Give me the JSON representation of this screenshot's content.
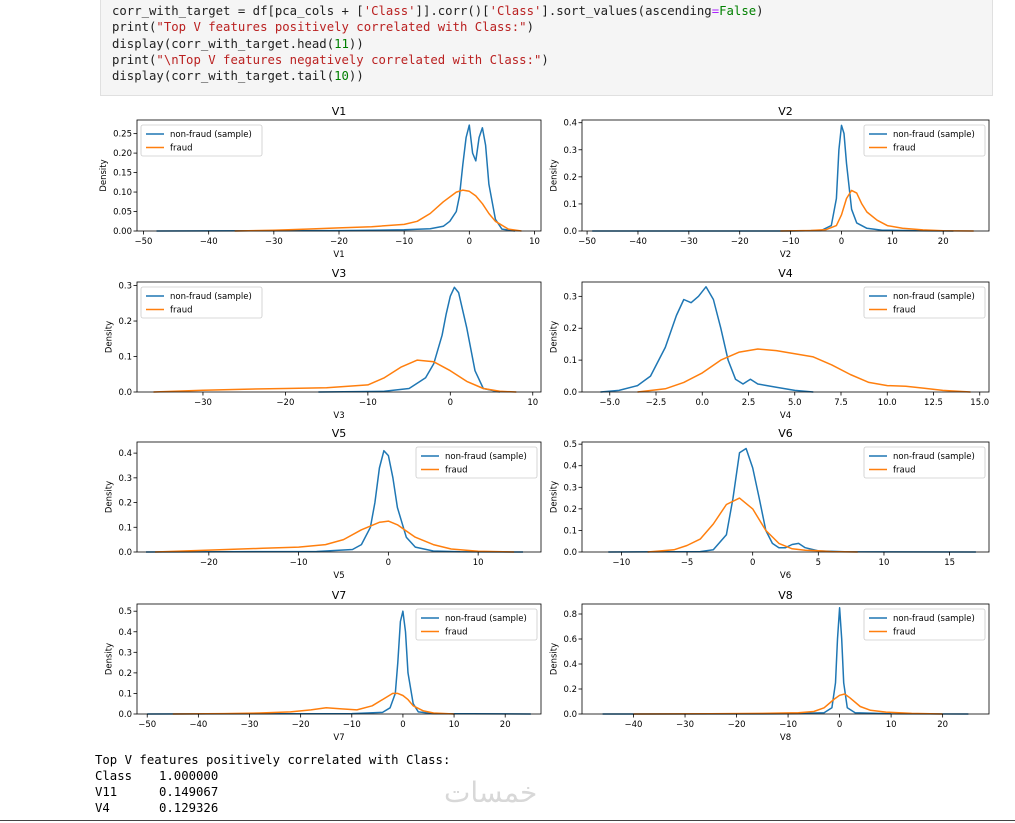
{
  "code": {
    "lines": [
      [
        [
          "t",
          "corr_with_target = df[pca_cols + ["
        ],
        [
          "s",
          "'Class'"
        ],
        [
          "t",
          "]].corr()["
        ],
        [
          "s",
          "'Class'"
        ],
        [
          "t",
          "].sort_values(ascending"
        ],
        [
          "o",
          "="
        ],
        [
          "k",
          "False"
        ],
        [
          "t",
          ")"
        ]
      ],
      [
        [
          "t",
          "print("
        ],
        [
          "s",
          "\"Top V features positively correlated with Class:\""
        ],
        [
          "t",
          ")"
        ]
      ],
      [
        [
          "t",
          "display(corr_with_target.head("
        ],
        [
          "n",
          "11"
        ],
        [
          "t",
          "))"
        ]
      ],
      [
        [
          "t",
          "print("
        ],
        [
          "s",
          "\"\\nTop V features negatively correlated with Class:\""
        ],
        [
          "t",
          ")"
        ]
      ],
      [
        [
          "t",
          "display(corr_with_target.tail("
        ],
        [
          "n",
          "10"
        ],
        [
          "t",
          "))"
        ]
      ]
    ]
  },
  "legend": {
    "nonfraud": "non-fraud (sample)",
    "fraud": "fraud"
  },
  "colors": {
    "nonfraud": "#1f77b4",
    "fraud": "#ff7f0e"
  },
  "chart_data": [
    {
      "type": "line",
      "title": "V1",
      "xlabel": "V1",
      "ylabel": "Density",
      "xlim": [
        -51,
        11
      ],
      "ylim": [
        0,
        0.285
      ],
      "xticks": [
        [
          -50,
          "−50"
        ],
        [
          -40,
          "−40"
        ],
        [
          -30,
          "−30"
        ],
        [
          -20,
          "−20"
        ],
        [
          -10,
          "−10"
        ],
        [
          0,
          "0"
        ],
        [
          10,
          "10"
        ]
      ],
      "yticks": [
        [
          0,
          "0.00"
        ],
        [
          0.05,
          "0.05"
        ],
        [
          0.1,
          "0.10"
        ],
        [
          0.15,
          "0.15"
        ],
        [
          0.2,
          "0.20"
        ],
        [
          0.25,
          "0.25"
        ]
      ],
      "legend_loc": "upper left",
      "series": [
        {
          "name": "non-fraud (sample)",
          "x": [
            -48,
            -20,
            -10,
            -6,
            -4,
            -3,
            -2,
            -1.5,
            -1,
            -0.5,
            0,
            0.5,
            1,
            1.5,
            2,
            2.5,
            3,
            4,
            5,
            7
          ],
          "y": [
            0,
            0.001,
            0.003,
            0.006,
            0.012,
            0.025,
            0.05,
            0.09,
            0.17,
            0.24,
            0.272,
            0.2,
            0.18,
            0.24,
            0.265,
            0.22,
            0.12,
            0.03,
            0.005,
            0
          ]
        },
        {
          "name": "fraud",
          "x": [
            -36,
            -30,
            -25,
            -20,
            -15,
            -10,
            -8,
            -6,
            -4,
            -2,
            -1,
            0,
            1,
            2,
            3,
            4,
            6,
            8
          ],
          "y": [
            0,
            0.002,
            0.005,
            0.008,
            0.011,
            0.017,
            0.025,
            0.045,
            0.075,
            0.1,
            0.105,
            0.102,
            0.09,
            0.07,
            0.045,
            0.025,
            0.005,
            0
          ]
        }
      ]
    },
    {
      "type": "line",
      "title": "V2",
      "xlabel": "V2",
      "ylabel": "Density",
      "xlim": [
        -51,
        29
      ],
      "ylim": [
        0,
        0.41
      ],
      "xticks": [
        [
          -50,
          "−50"
        ],
        [
          -40,
          "−40"
        ],
        [
          -30,
          "−30"
        ],
        [
          -20,
          "−20"
        ],
        [
          -10,
          "−10"
        ],
        [
          0,
          "0"
        ],
        [
          10,
          "10"
        ],
        [
          20,
          "20"
        ]
      ],
      "yticks": [
        [
          0,
          "0.0"
        ],
        [
          0.1,
          "0.1"
        ],
        [
          0.2,
          "0.2"
        ],
        [
          0.3,
          "0.3"
        ],
        [
          0.4,
          "0.4"
        ]
      ],
      "legend_loc": "upper right",
      "series": [
        {
          "name": "non-fraud (sample)",
          "x": [
            -49,
            -10,
            -4,
            -2,
            -1,
            -0.5,
            0,
            0.5,
            1,
            2,
            3,
            5,
            8,
            15,
            22
          ],
          "y": [
            0,
            0,
            0.002,
            0.02,
            0.12,
            0.3,
            0.39,
            0.36,
            0.25,
            0.08,
            0.03,
            0.01,
            0.003,
            0.001,
            0
          ]
        },
        {
          "name": "fraud",
          "x": [
            -12,
            -6,
            -3,
            -1,
            0,
            1,
            2,
            3,
            4,
            5,
            7,
            9,
            12,
            16,
            20,
            26
          ],
          "y": [
            0,
            0.002,
            0.005,
            0.02,
            0.06,
            0.12,
            0.15,
            0.14,
            0.1,
            0.07,
            0.04,
            0.02,
            0.01,
            0.004,
            0.001,
            0
          ]
        }
      ]
    },
    {
      "type": "line",
      "title": "V3",
      "xlabel": "V3",
      "ylabel": "Density",
      "xlim": [
        -38,
        11
      ],
      "ylim": [
        0,
        0.31
      ],
      "xticks": [
        [
          -30,
          "−30"
        ],
        [
          -20,
          "−20"
        ],
        [
          -10,
          "−10"
        ],
        [
          0,
          "0"
        ],
        [
          10,
          "10"
        ]
      ],
      "yticks": [
        [
          0,
          "0.0"
        ],
        [
          0.1,
          "0.1"
        ],
        [
          0.2,
          "0.2"
        ],
        [
          0.3,
          "0.3"
        ]
      ],
      "legend_loc": "upper left",
      "series": [
        {
          "name": "non-fraud (sample)",
          "x": [
            -16,
            -8,
            -5,
            -3,
            -2,
            -1,
            -0.5,
            0,
            0.5,
            1,
            2,
            3,
            4,
            6
          ],
          "y": [
            0,
            0.002,
            0.01,
            0.04,
            0.08,
            0.16,
            0.22,
            0.27,
            0.295,
            0.28,
            0.18,
            0.06,
            0.01,
            0
          ]
        },
        {
          "name": "fraud",
          "x": [
            -36,
            -30,
            -25,
            -20,
            -15,
            -10,
            -8,
            -6,
            -4,
            -2,
            0,
            2,
            4,
            6,
            8
          ],
          "y": [
            0,
            0.005,
            0.008,
            0.01,
            0.012,
            0.02,
            0.04,
            0.07,
            0.09,
            0.085,
            0.06,
            0.03,
            0.01,
            0.002,
            0
          ]
        }
      ]
    },
    {
      "type": "line",
      "title": "V4",
      "xlabel": "V4",
      "ylabel": "Density",
      "xlim": [
        -6.5,
        15.5
      ],
      "ylim": [
        0,
        0.345
      ],
      "xticks": [
        [
          -5,
          "−5.0"
        ],
        [
          -2.5,
          "−2.5"
        ],
        [
          0,
          "0.0"
        ],
        [
          2.5,
          "2.5"
        ],
        [
          5,
          "5.0"
        ],
        [
          7.5,
          "7.5"
        ],
        [
          10,
          "10.0"
        ],
        [
          12.5,
          "12.5"
        ],
        [
          15,
          "15.0"
        ]
      ],
      "yticks": [
        [
          0,
          "0.0"
        ],
        [
          0.1,
          "0.1"
        ],
        [
          0.2,
          "0.2"
        ],
        [
          0.3,
          "0.3"
        ]
      ],
      "legend_loc": "upper right",
      "series": [
        {
          "name": "non-fraud (sample)",
          "x": [
            -5.5,
            -4.5,
            -3.5,
            -2.8,
            -2,
            -1.4,
            -1,
            -0.6,
            -0.2,
            0.2,
            0.6,
            1,
            1.4,
            1.8,
            2.2,
            2.6,
            3,
            3.5,
            4,
            5,
            6
          ],
          "y": [
            0,
            0.005,
            0.02,
            0.05,
            0.14,
            0.24,
            0.29,
            0.28,
            0.3,
            0.33,
            0.29,
            0.2,
            0.1,
            0.04,
            0.025,
            0.04,
            0.025,
            0.02,
            0.015,
            0.005,
            0
          ]
        },
        {
          "name": "fraud",
          "x": [
            -3.5,
            -2,
            -1,
            0,
            1,
            2,
            3,
            4,
            5,
            6,
            7,
            8,
            9,
            10,
            11,
            12,
            13,
            14.5
          ],
          "y": [
            0,
            0.01,
            0.03,
            0.06,
            0.1,
            0.125,
            0.135,
            0.13,
            0.12,
            0.11,
            0.085,
            0.055,
            0.03,
            0.02,
            0.018,
            0.012,
            0.005,
            0
          ]
        }
      ]
    },
    {
      "type": "line",
      "title": "V5",
      "xlabel": "V5",
      "ylabel": "Density",
      "xlim": [
        -28,
        17
      ],
      "ylim": [
        0,
        0.445
      ],
      "xticks": [
        [
          -20,
          "−20"
        ],
        [
          -10,
          "−10"
        ],
        [
          0,
          "0"
        ],
        [
          10,
          "10"
        ]
      ],
      "yticks": [
        [
          0,
          "0.0"
        ],
        [
          0.1,
          "0.1"
        ],
        [
          0.2,
          "0.2"
        ],
        [
          0.3,
          "0.3"
        ],
        [
          0.4,
          "0.4"
        ]
      ],
      "legend_loc": "upper right",
      "series": [
        {
          "name": "non-fraud (sample)",
          "x": [
            -27,
            -8,
            -4,
            -3,
            -2,
            -1.5,
            -1,
            -0.5,
            0,
            0.5,
            1,
            2,
            3,
            5,
            8,
            15
          ],
          "y": [
            0,
            0.002,
            0.01,
            0.03,
            0.1,
            0.2,
            0.34,
            0.41,
            0.39,
            0.3,
            0.18,
            0.06,
            0.02,
            0.004,
            0.001,
            0
          ]
        },
        {
          "name": "fraud",
          "x": [
            -26,
            -22,
            -18,
            -14,
            -10,
            -7,
            -5,
            -3,
            -1,
            0,
            1,
            2,
            3,
            5,
            7,
            10,
            14
          ],
          "y": [
            0,
            0.005,
            0.01,
            0.015,
            0.02,
            0.03,
            0.05,
            0.09,
            0.12,
            0.125,
            0.11,
            0.085,
            0.06,
            0.03,
            0.012,
            0.003,
            0
          ]
        }
      ]
    },
    {
      "type": "line",
      "title": "V6",
      "xlabel": "V6",
      "ylabel": "Density",
      "xlim": [
        -13,
        18
      ],
      "ylim": [
        0,
        0.51
      ],
      "xticks": [
        [
          -10,
          "−10"
        ],
        [
          -5,
          "−5"
        ],
        [
          0,
          "0"
        ],
        [
          5,
          "5"
        ],
        [
          10,
          "10"
        ],
        [
          15,
          "15"
        ]
      ],
      "yticks": [
        [
          0,
          "0.0"
        ],
        [
          0.1,
          "0.1"
        ],
        [
          0.2,
          "0.2"
        ],
        [
          0.3,
          "0.3"
        ],
        [
          0.4,
          "0.4"
        ],
        [
          0.5,
          "0.5"
        ]
      ],
      "legend_loc": "upper right",
      "series": [
        {
          "name": "non-fraud (sample)",
          "x": [
            -11,
            -4,
            -3,
            -2,
            -1.5,
            -1,
            -0.5,
            0,
            0.5,
            1,
            1.5,
            2,
            2.5,
            3,
            3.5,
            4,
            5,
            7,
            17
          ],
          "y": [
            0,
            0.002,
            0.01,
            0.08,
            0.25,
            0.46,
            0.48,
            0.39,
            0.25,
            0.1,
            0.04,
            0.02,
            0.02,
            0.035,
            0.04,
            0.02,
            0.005,
            0.001,
            0
          ]
        },
        {
          "name": "fraud",
          "x": [
            -8,
            -6,
            -5,
            -4,
            -3,
            -2,
            -1,
            0,
            1,
            2,
            3,
            4,
            5,
            6,
            8
          ],
          "y": [
            0,
            0.01,
            0.03,
            0.06,
            0.13,
            0.22,
            0.25,
            0.2,
            0.1,
            0.04,
            0.015,
            0.008,
            0.006,
            0.002,
            0
          ]
        }
      ]
    },
    {
      "type": "line",
      "title": "V7",
      "xlabel": "V7",
      "ylabel": "Density",
      "xlim": [
        -52,
        27
      ],
      "ylim": [
        0,
        0.535
      ],
      "xticks": [
        [
          -50,
          "−50"
        ],
        [
          -40,
          "−40"
        ],
        [
          -30,
          "−30"
        ],
        [
          -20,
          "−20"
        ],
        [
          -10,
          "−10"
        ],
        [
          0,
          "0"
        ],
        [
          10,
          "10"
        ],
        [
          20,
          "20"
        ]
      ],
      "yticks": [
        [
          0,
          "0.0"
        ],
        [
          0.1,
          "0.1"
        ],
        [
          0.2,
          "0.2"
        ],
        [
          0.3,
          "0.3"
        ],
        [
          0.4,
          "0.4"
        ],
        [
          0.5,
          "0.5"
        ]
      ],
      "legend_loc": "upper right",
      "series": [
        {
          "name": "non-fraud (sample)",
          "x": [
            -50,
            -10,
            -4,
            -2.5,
            -1.5,
            -1,
            -0.5,
            0,
            0.5,
            1,
            2,
            3,
            6,
            25
          ],
          "y": [
            0,
            0.002,
            0.008,
            0.03,
            0.1,
            0.25,
            0.45,
            0.5,
            0.4,
            0.2,
            0.05,
            0.01,
            0.002,
            0
          ]
        },
        {
          "name": "fraud",
          "x": [
            -45,
            -35,
            -28,
            -22,
            -18,
            -15,
            -12,
            -9,
            -6,
            -4,
            -2,
            -1,
            0,
            1,
            2,
            4,
            6,
            10
          ],
          "y": [
            0,
            0.002,
            0.005,
            0.01,
            0.02,
            0.03,
            0.025,
            0.02,
            0.04,
            0.07,
            0.1,
            0.1,
            0.09,
            0.07,
            0.04,
            0.015,
            0.005,
            0
          ]
        }
      ]
    },
    {
      "type": "line",
      "title": "V8",
      "xlabel": "V8",
      "ylabel": "Density",
      "xlim": [
        -50,
        29
      ],
      "ylim": [
        0,
        0.88
      ],
      "xticks": [
        [
          -40,
          "−40"
        ],
        [
          -30,
          "−30"
        ],
        [
          -20,
          "−20"
        ],
        [
          -10,
          "−10"
        ],
        [
          0,
          "0"
        ],
        [
          10,
          "10"
        ],
        [
          20,
          "20"
        ]
      ],
      "yticks": [
        [
          0,
          "0.0"
        ],
        [
          0.2,
          "0.2"
        ],
        [
          0.4,
          "0.4"
        ],
        [
          0.6,
          "0.6"
        ],
        [
          0.8,
          "0.8"
        ]
      ],
      "legend_loc": "upper right",
      "series": [
        {
          "name": "non-fraud (sample)",
          "x": [
            -46,
            -10,
            -3,
            -1.5,
            -0.8,
            -0.4,
            0,
            0.4,
            0.8,
            1.5,
            3,
            10,
            25
          ],
          "y": [
            0,
            0.002,
            0.01,
            0.05,
            0.25,
            0.6,
            0.85,
            0.6,
            0.25,
            0.05,
            0.01,
            0.002,
            0
          ]
        },
        {
          "name": "fraud",
          "x": [
            -40,
            -25,
            -15,
            -8,
            -5,
            -3,
            -1,
            0,
            1,
            2,
            4,
            6,
            9,
            14,
            20
          ],
          "y": [
            0,
            0.002,
            0.005,
            0.01,
            0.02,
            0.05,
            0.12,
            0.15,
            0.16,
            0.13,
            0.06,
            0.03,
            0.015,
            0.005,
            0
          ]
        }
      ]
    }
  ],
  "output": {
    "header": "Top V features positively correlated with Class:",
    "rows": [
      [
        "Class",
        "1.000000"
      ],
      [
        "V11",
        "0.149067"
      ],
      [
        "V4",
        "0.129326"
      ]
    ]
  },
  "watermark": "خمسات"
}
